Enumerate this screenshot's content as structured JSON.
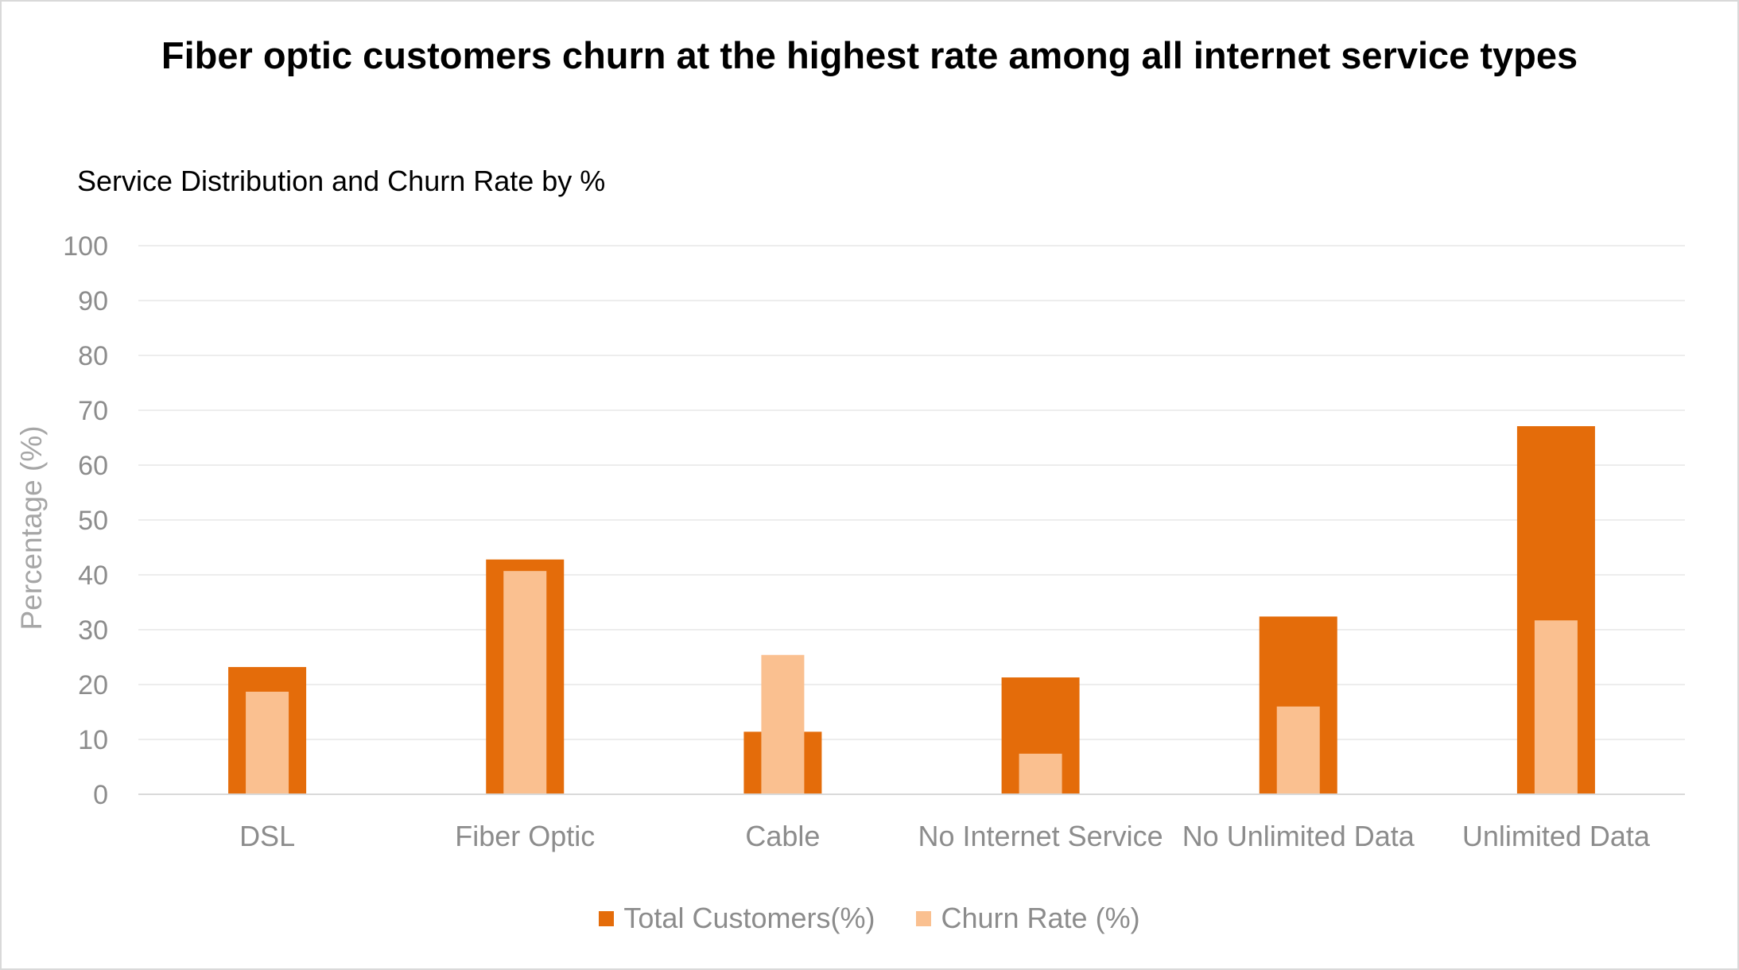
{
  "chart_data": {
    "type": "bar",
    "title": "Fiber optic customers churn at the highest rate among all internet service types",
    "subtitle": "Service Distribution and Churn Rate by %",
    "xlabel": "",
    "ylabel": "Percentage (%)",
    "ylim": [
      0,
      100
    ],
    "yticks": [
      "0",
      "10",
      "20",
      "30",
      "40",
      "50",
      "60",
      "70",
      "80",
      "90",
      "100"
    ],
    "yticks_values": [
      0,
      10,
      20,
      30,
      40,
      50,
      60,
      70,
      80,
      90,
      100
    ],
    "grid": true,
    "legend_position": "bottom",
    "overlapping_bars": true,
    "categories": [
      "DSL",
      "Fiber Optic",
      "Cable",
      "No Internet Service",
      "No Unlimited Data",
      "Unlimited Data"
    ],
    "series": [
      {
        "name": "Total Customers(%)",
        "color": "#e46c0a",
        "values": [
          23.2,
          42.8,
          11.4,
          21.3,
          32.4,
          67.1
        ]
      },
      {
        "name": "Churn Rate (%)",
        "color": "#fac090",
        "values": [
          18.7,
          40.7,
          25.4,
          7.4,
          16.0,
          31.7
        ]
      }
    ]
  }
}
